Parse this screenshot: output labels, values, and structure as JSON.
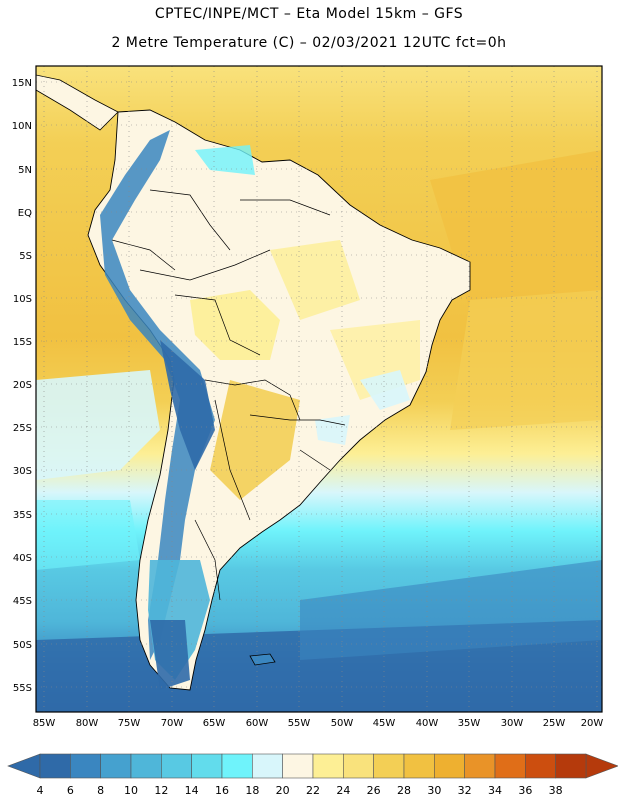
{
  "header": {
    "line1": "CPTEC/INPE/MCT –  Eta Model 15km – GFS",
    "line2": "2 Metre Temperature (C) – 02/03/2021 12UTC fct=0h"
  },
  "axes": {
    "lat_labels": [
      "15N",
      "10N",
      "5N",
      "EQ",
      "5S",
      "10S",
      "15S",
      "20S",
      "25S",
      "30S",
      "35S",
      "40S",
      "45S",
      "50S",
      "55S"
    ],
    "lon_labels": [
      "85W",
      "80W",
      "75W",
      "70W",
      "65W",
      "60W",
      "55W",
      "50W",
      "45W",
      "40W",
      "35W",
      "30W",
      "25W",
      "20W"
    ]
  },
  "colorbar": {
    "ticks": [
      "4",
      "6",
      "8",
      "10",
      "12",
      "14",
      "16",
      "18",
      "20",
      "22",
      "24",
      "26",
      "28",
      "30",
      "32",
      "34",
      "36",
      "38"
    ],
    "colors": [
      "#2f6aa8",
      "#3a86c0",
      "#45a1cf",
      "#4fb6d9",
      "#58c9e3",
      "#62dcec",
      "#6ff3fb",
      "#d8f6fb",
      "#fdf6e3",
      "#fdef95",
      "#f9e27c",
      "#f3cf55",
      "#f1c141",
      "#eeb030",
      "#e99328",
      "#e06e18",
      "#cc4e0f",
      "#b53a0c"
    ],
    "left_end": "#2f6aa8",
    "right_end": "#b53a0c"
  }
}
